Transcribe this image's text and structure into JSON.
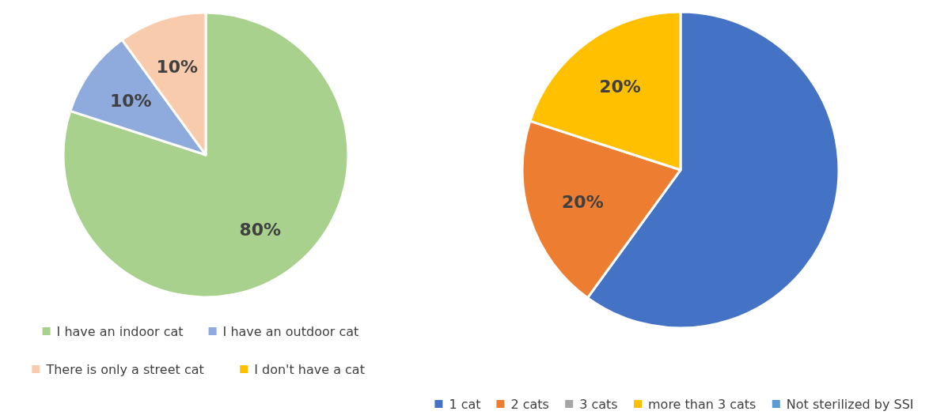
{
  "chart_data": [
    {
      "type": "pie",
      "categories": [
        "I have an indoor cat",
        "I have an outdoor cat",
        "There is only a street cat",
        "I don't have a cat"
      ],
      "values": [
        80,
        10,
        10,
        0
      ],
      "colors": [
        "#a9d18e",
        "#8faadc",
        "#f8cbad",
        "#ffc000"
      ],
      "value_labels": [
        "80%",
        "10%",
        "10%",
        null
      ],
      "legend": "bottom"
    },
    {
      "type": "pie",
      "categories": [
        "1 cat",
        "2 cats",
        "3 cats",
        "more than 3 cats",
        "Not sterilized by SSI"
      ],
      "values": [
        60,
        20,
        0,
        20,
        0
      ],
      "colors": [
        "#4472c4",
        "#ed7d31",
        "#a5a5a5",
        "#ffc000",
        "#5b9bd5"
      ],
      "value_labels": [
        null,
        "20%",
        null,
        "20%",
        null
      ],
      "legend": "bottom"
    }
  ]
}
